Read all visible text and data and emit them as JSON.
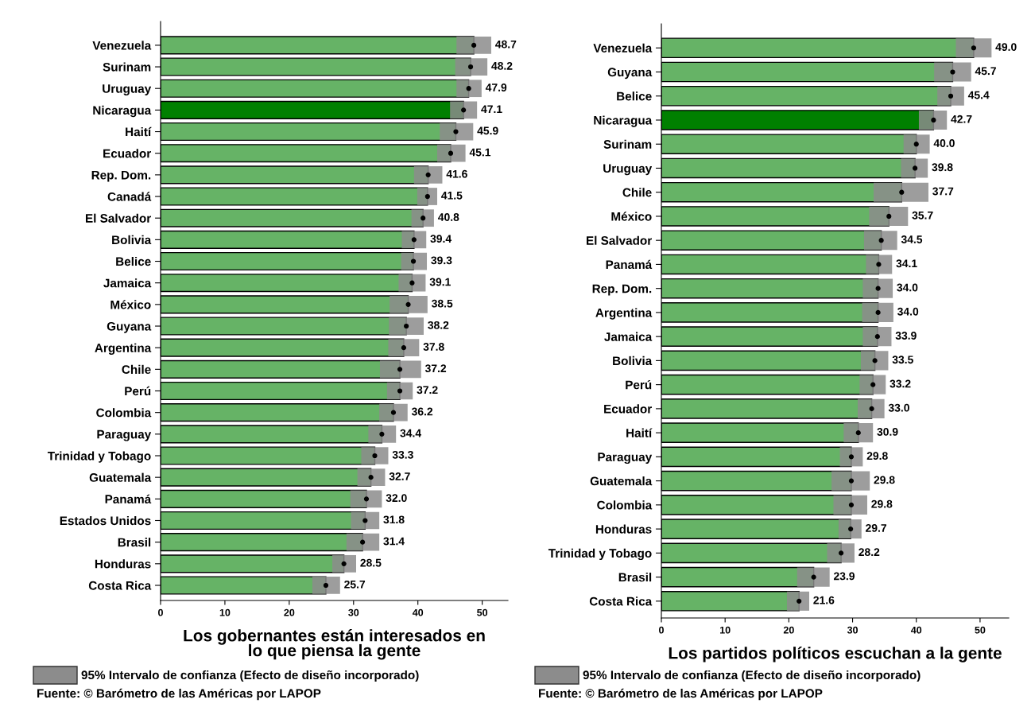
{
  "chart_data": [
    {
      "type": "bar",
      "orientation": "horizontal",
      "xlabel": "Los gobernantes están interesados en\nlo que piensa la gente",
      "marker": "circle",
      "categories": [
        "Venezuela",
        "Surinam",
        "Uruguay",
        "Nicaragua",
        "Haití",
        "Ecuador",
        "Rep. Dom.",
        "Canadá",
        "El Salvador",
        "Bolivia",
        "Belice",
        "Jamaica",
        "México",
        "Guyana",
        "Argentina",
        "Chile",
        "Perú",
        "Colombia",
        "Paraguay",
        "Trinidad y Tobago",
        "Guatemala",
        "Panamá",
        "Estados Unidos",
        "Brasil",
        "Honduras",
        "Costa Rica"
      ],
      "series": [
        {
          "type": "bar",
          "values": [
            48.7,
            48.2,
            47.9,
            47.1,
            45.9,
            45.1,
            41.6,
            41.5,
            40.8,
            39.4,
            39.3,
            39.1,
            38.5,
            38.2,
            37.8,
            37.2,
            37.2,
            36.2,
            34.4,
            33.3,
            32.7,
            32.0,
            31.8,
            31.4,
            28.5,
            25.7
          ],
          "value_labels": [
            "48.7",
            "48.2",
            "47.9",
            "47.1",
            "45.9",
            "45.1",
            "41.6",
            "41.5",
            "40.8",
            "39.4",
            "39.3",
            "39.1",
            "38.5",
            "38.2",
            "37.8",
            "37.2",
            "37.2",
            "36.2",
            "34.4",
            "33.3",
            "32.7",
            "32.0",
            "31.8",
            "31.4",
            "28.5",
            "25.7"
          ],
          "errors": [
            [
              46.0,
              51.4
            ],
            [
              45.8,
              50.8
            ],
            [
              46.0,
              49.9
            ],
            [
              45.0,
              49.2
            ],
            [
              43.4,
              48.6
            ],
            [
              43.0,
              47.4
            ],
            [
              39.4,
              43.8
            ],
            [
              39.9,
              43.0
            ],
            [
              39.0,
              42.5
            ],
            [
              37.5,
              41.3
            ],
            [
              37.4,
              41.4
            ],
            [
              37.0,
              41.2
            ],
            [
              35.6,
              41.5
            ],
            [
              35.5,
              40.9
            ],
            [
              35.4,
              40.2
            ],
            [
              34.1,
              40.5
            ],
            [
              35.2,
              39.2
            ],
            [
              34.0,
              38.4
            ],
            [
              32.3,
              36.6
            ],
            [
              31.2,
              35.4
            ],
            [
              30.6,
              34.9
            ],
            [
              29.5,
              34.4
            ],
            [
              29.6,
              34.0
            ],
            [
              28.9,
              34.0
            ],
            [
              26.7,
              30.4
            ],
            [
              23.6,
              27.9
            ]
          ],
          "colors": [
            "#66b366",
            "#66b366",
            "#66b366",
            "#008000",
            "#66b366",
            "#66b366",
            "#66b366",
            "#66b366",
            "#66b366",
            "#66b366",
            "#66b366",
            "#66b366",
            "#66b366",
            "#66b366",
            "#66b366",
            "#66b366",
            "#66b366",
            "#66b366",
            "#66b366",
            "#66b366",
            "#66b366",
            "#66b366",
            "#66b366",
            "#66b366",
            "#66b366",
            "#66b366"
          ]
        },
        {
          "type": "scatter",
          "color": "#000000",
          "values": [
            48.7,
            48.2,
            47.9,
            47.1,
            45.9,
            45.1,
            41.6,
            41.5,
            40.8,
            39.4,
            39.3,
            39.1,
            38.5,
            38.2,
            37.8,
            37.2,
            37.2,
            36.2,
            34.4,
            33.3,
            32.7,
            32.0,
            31.8,
            31.4,
            28.5,
            25.7
          ]
        }
      ],
      "xlim": [
        0,
        54
      ],
      "xticks": [
        0,
        10,
        20,
        30,
        40,
        50
      ],
      "annotations": [
        "95% Intervalo de confianza (Efecto de diseño incorporado)",
        "Fuente: © Barómetro de las Américas por LAPOP"
      ]
    },
    {
      "type": "bar",
      "orientation": "horizontal",
      "xlabel": "Los partidos políticos escuchan a la gente",
      "marker": "circle",
      "categories": [
        "Venezuela",
        "Guyana",
        "Belice",
        "Nicaragua",
        "Surinam",
        "Uruguay",
        "Chile",
        "México",
        "El Salvador",
        "Panamá",
        "Rep. Dom.",
        "Argentina",
        "Jamaica",
        "Bolivia",
        "Perú",
        "Ecuador",
        "Haití",
        "Paraguay",
        "Guatemala",
        "Colombia",
        "Honduras",
        "Trinidad y Tobago",
        "Brasil",
        "Costa Rica"
      ],
      "series": [
        {
          "type": "bar",
          "values": [
            49.0,
            45.7,
            45.4,
            42.7,
            40.0,
            39.8,
            37.7,
            35.7,
            34.5,
            34.1,
            34.0,
            34.0,
            33.9,
            33.5,
            33.2,
            33.0,
            30.9,
            29.8,
            29.8,
            29.8,
            29.7,
            28.2,
            23.9,
            21.6
          ],
          "value_labels": [
            "49.0",
            "45.7",
            "45.4",
            "42.7",
            "40.0",
            "39.8",
            "37.7",
            "35.7",
            "34.5",
            "34.1",
            "34.0",
            "34.0",
            "33.9",
            "33.5",
            "33.2",
            "33.0",
            "30.9",
            "29.8",
            "29.8",
            "29.8",
            "29.7",
            "28.2",
            "23.9",
            "21.6"
          ],
          "errors": [
            [
              46.2,
              51.8
            ],
            [
              42.8,
              48.6
            ],
            [
              43.3,
              47.5
            ],
            [
              40.4,
              44.8
            ],
            [
              38.0,
              42.1
            ],
            [
              37.6,
              41.8
            ],
            [
              33.3,
              41.9
            ],
            [
              32.6,
              38.7
            ],
            [
              31.8,
              37.0
            ],
            [
              32.1,
              36.2
            ],
            [
              31.6,
              36.3
            ],
            [
              31.5,
              36.4
            ],
            [
              31.6,
              36.1
            ],
            [
              31.3,
              35.6
            ],
            [
              31.1,
              35.2
            ],
            [
              30.8,
              35.0
            ],
            [
              28.6,
              33.2
            ],
            [
              28.0,
              31.6
            ],
            [
              26.7,
              32.7
            ],
            [
              27.0,
              32.3
            ],
            [
              27.8,
              31.4
            ],
            [
              26.0,
              30.3
            ],
            [
              21.3,
              26.4
            ],
            [
              19.7,
              23.2
            ]
          ],
          "colors": [
            "#66b366",
            "#66b366",
            "#66b366",
            "#008000",
            "#66b366",
            "#66b366",
            "#66b366",
            "#66b366",
            "#66b366",
            "#66b366",
            "#66b366",
            "#66b366",
            "#66b366",
            "#66b366",
            "#66b366",
            "#66b366",
            "#66b366",
            "#66b366",
            "#66b366",
            "#66b366",
            "#66b366",
            "#66b366",
            "#66b366",
            "#66b366"
          ]
        },
        {
          "type": "scatter",
          "color": "#000000",
          "values": [
            49.0,
            45.7,
            45.4,
            42.7,
            40.0,
            39.8,
            37.7,
            35.7,
            34.5,
            34.1,
            34.0,
            34.0,
            33.9,
            33.5,
            33.2,
            33.0,
            30.9,
            29.8,
            29.8,
            29.8,
            29.7,
            28.2,
            23.9,
            21.6
          ]
        }
      ],
      "xlim": [
        0,
        54.5
      ],
      "xticks": [
        0,
        10,
        20,
        30,
        40,
        50
      ],
      "annotations": [
        "95% Intervalo de confianza (Efecto de diseño incorporado)",
        "Fuente: © Barómetro de las Américas por LAPOP"
      ]
    }
  ]
}
